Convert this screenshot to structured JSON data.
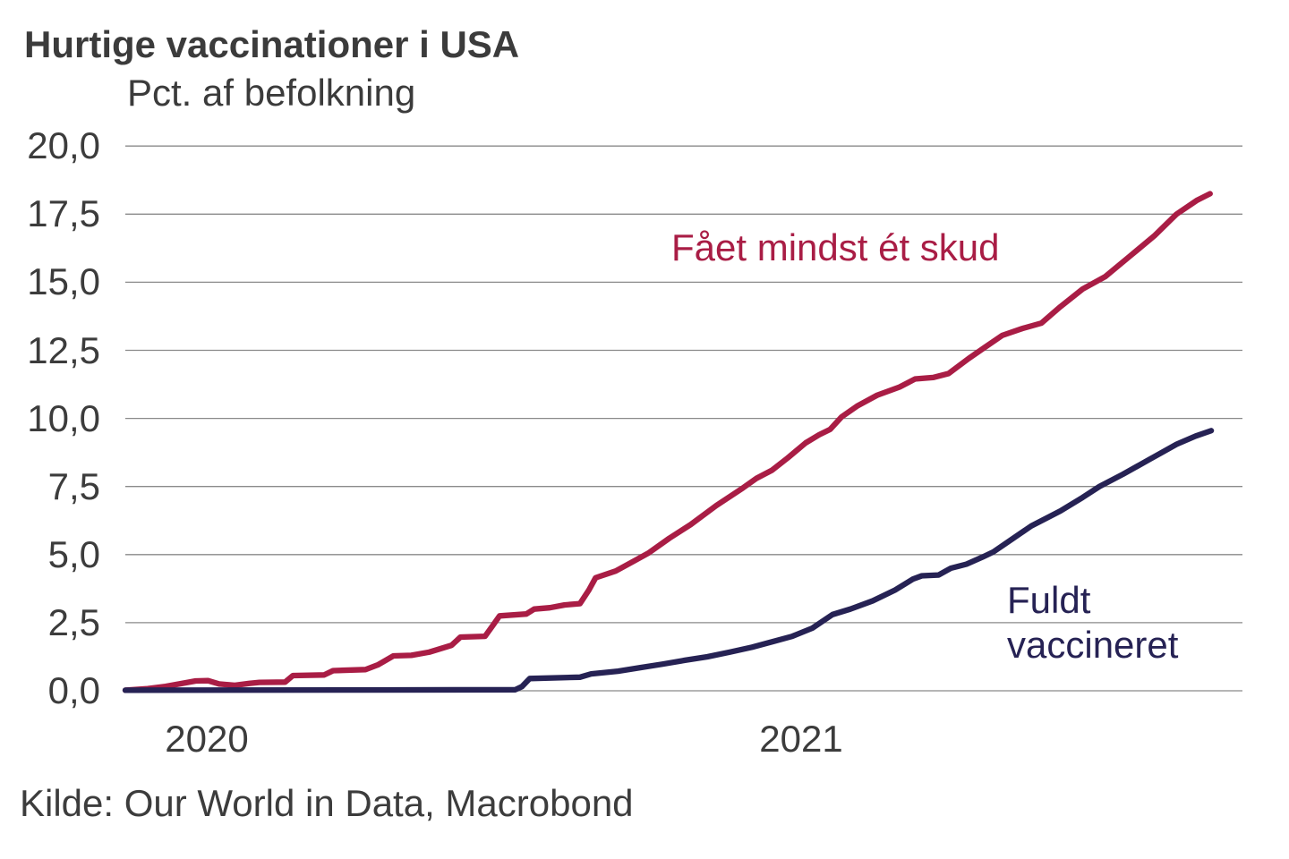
{
  "chart_data": {
    "type": "line",
    "title": "Hurtige vaccinationer i USA",
    "subtitle": "Pct. af befolkning",
    "source": "Kilde: Our World in Data, Macrobond",
    "ylim": [
      0,
      20
    ],
    "y_tick_step": 2.5,
    "y_tick_labels": [
      "20,0",
      "17,5",
      "15,0",
      "12,5",
      "10,0",
      "7,5",
      "5,0",
      "2,5",
      "0,0"
    ],
    "x_tick_labels": [
      "2020",
      "2021"
    ],
    "x_tick_positions": [
      0.073,
      0.605
    ],
    "grid": "horizontal",
    "legend_position": "labels-on-chart",
    "colors": {
      "grid": "#8a8a8a",
      "text": "#3c3c3c",
      "one_shot": "#a91d45",
      "fully_vaccinated": "#262254"
    },
    "x_axis_note": "x positions are fractions 0-1 of plot width, spanning late 2020 into 2021",
    "series": [
      {
        "name": "Fået mindst ét skud",
        "color": "#a91d45",
        "points": [
          [
            0.0,
            0.02
          ],
          [
            0.02,
            0.08
          ],
          [
            0.036,
            0.16
          ],
          [
            0.052,
            0.28
          ],
          [
            0.063,
            0.36
          ],
          [
            0.074,
            0.37
          ],
          [
            0.084,
            0.25
          ],
          [
            0.098,
            0.2
          ],
          [
            0.111,
            0.27
          ],
          [
            0.12,
            0.31
          ],
          [
            0.143,
            0.32
          ],
          [
            0.15,
            0.56
          ],
          [
            0.178,
            0.58
          ],
          [
            0.186,
            0.74
          ],
          [
            0.215,
            0.78
          ],
          [
            0.226,
            0.95
          ],
          [
            0.24,
            1.28
          ],
          [
            0.256,
            1.3
          ],
          [
            0.272,
            1.42
          ],
          [
            0.292,
            1.67
          ],
          [
            0.3,
            1.97
          ],
          [
            0.322,
            2.0
          ],
          [
            0.329,
            2.4
          ],
          [
            0.335,
            2.75
          ],
          [
            0.359,
            2.82
          ],
          [
            0.366,
            3.0
          ],
          [
            0.38,
            3.05
          ],
          [
            0.393,
            3.15
          ],
          [
            0.407,
            3.2
          ],
          [
            0.415,
            3.7
          ],
          [
            0.421,
            4.15
          ],
          [
            0.439,
            4.4
          ],
          [
            0.457,
            4.8
          ],
          [
            0.468,
            5.05
          ],
          [
            0.487,
            5.6
          ],
          [
            0.506,
            6.1
          ],
          [
            0.529,
            6.8
          ],
          [
            0.553,
            7.45
          ],
          [
            0.565,
            7.8
          ],
          [
            0.579,
            8.1
          ],
          [
            0.593,
            8.55
          ],
          [
            0.609,
            9.1
          ],
          [
            0.621,
            9.4
          ],
          [
            0.631,
            9.6
          ],
          [
            0.641,
            10.05
          ],
          [
            0.655,
            10.45
          ],
          [
            0.673,
            10.85
          ],
          [
            0.693,
            11.15
          ],
          [
            0.707,
            11.45
          ],
          [
            0.723,
            11.5
          ],
          [
            0.737,
            11.65
          ],
          [
            0.755,
            12.2
          ],
          [
            0.769,
            12.6
          ],
          [
            0.785,
            13.05
          ],
          [
            0.803,
            13.3
          ],
          [
            0.82,
            13.5
          ],
          [
            0.837,
            14.1
          ],
          [
            0.857,
            14.75
          ],
          [
            0.877,
            15.2
          ],
          [
            0.899,
            15.95
          ],
          [
            0.921,
            16.7
          ],
          [
            0.941,
            17.5
          ],
          [
            0.959,
            18.0
          ],
          [
            0.971,
            18.25
          ]
        ]
      },
      {
        "name": "Fuldt vaccineret",
        "name_lines": [
          "Fuldt",
          "vaccineret"
        ],
        "color": "#262254",
        "points": [
          [
            0.0,
            0.02
          ],
          [
            0.208,
            0.03
          ],
          [
            0.349,
            0.04
          ],
          [
            0.355,
            0.15
          ],
          [
            0.362,
            0.45
          ],
          [
            0.407,
            0.5
          ],
          [
            0.417,
            0.62
          ],
          [
            0.441,
            0.72
          ],
          [
            0.461,
            0.85
          ],
          [
            0.481,
            0.98
          ],
          [
            0.501,
            1.12
          ],
          [
            0.521,
            1.25
          ],
          [
            0.541,
            1.42
          ],
          [
            0.561,
            1.6
          ],
          [
            0.581,
            1.82
          ],
          [
            0.597,
            2.0
          ],
          [
            0.615,
            2.3
          ],
          [
            0.633,
            2.8
          ],
          [
            0.649,
            3.0
          ],
          [
            0.669,
            3.3
          ],
          [
            0.689,
            3.7
          ],
          [
            0.705,
            4.1
          ],
          [
            0.713,
            4.22
          ],
          [
            0.728,
            4.25
          ],
          [
            0.739,
            4.5
          ],
          [
            0.753,
            4.65
          ],
          [
            0.767,
            4.9
          ],
          [
            0.777,
            5.1
          ],
          [
            0.793,
            5.55
          ],
          [
            0.811,
            6.05
          ],
          [
            0.837,
            6.6
          ],
          [
            0.857,
            7.1
          ],
          [
            0.872,
            7.5
          ],
          [
            0.893,
            7.95
          ],
          [
            0.917,
            8.5
          ],
          [
            0.941,
            9.05
          ],
          [
            0.958,
            9.35
          ],
          [
            0.972,
            9.55
          ]
        ]
      }
    ]
  }
}
